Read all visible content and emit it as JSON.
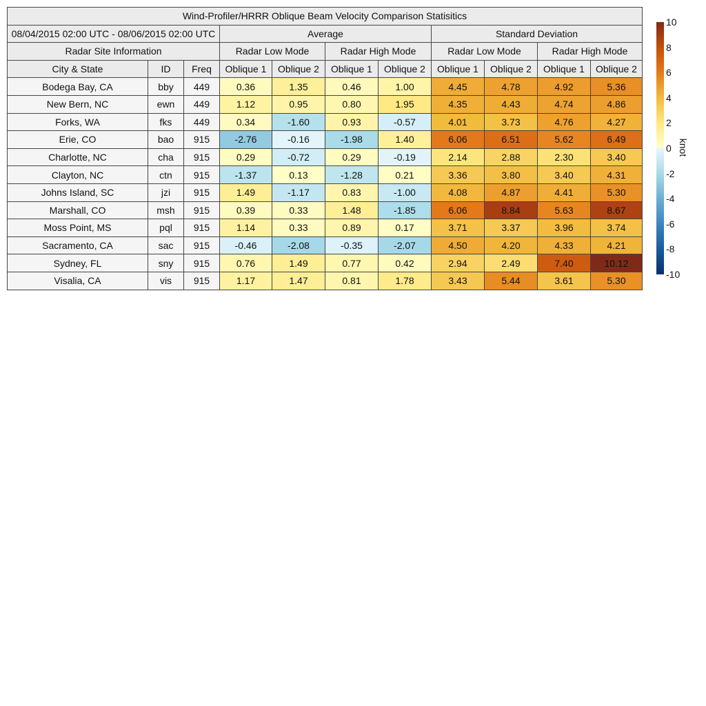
{
  "chart_data": {
    "type": "table",
    "title": "Wind-Profiler/HRRR Oblique Beam Velocity Comparison Statisitics",
    "date_range": "08/04/2015 02:00 UTC - 08/06/2015 02:00 UTC",
    "groups": [
      "Average",
      "Standard Deviation"
    ],
    "site_info_label": "Radar Site Information",
    "modes": [
      "Radar Low Mode",
      "Radar High Mode",
      "Radar Low Mode",
      "Radar High Mode"
    ],
    "columns": [
      "City & State",
      "ID",
      "Freq",
      "Oblique 1",
      "Oblique 2",
      "Oblique 1",
      "Oblique 2",
      "Oblique 1",
      "Oblique 2",
      "Oblique 1",
      "Oblique 2"
    ],
    "rows": [
      {
        "city": "Bodega Bay, CA",
        "id": "bby",
        "freq": "449",
        "values": [
          "0.36",
          "1.35",
          "0.46",
          "1.00",
          "4.45",
          "4.78",
          "4.92",
          "5.36"
        ]
      },
      {
        "city": "New Bern, NC",
        "id": "ewn",
        "freq": "449",
        "values": [
          "1.12",
          "0.95",
          "0.80",
          "1.95",
          "4.35",
          "4.43",
          "4.74",
          "4.86"
        ]
      },
      {
        "city": "Forks, WA",
        "id": "fks",
        "freq": "449",
        "values": [
          "0.34",
          "-1.60",
          "0.93",
          "-0.57",
          "4.01",
          "3.73",
          "4.76",
          "4.27"
        ]
      },
      {
        "city": "Erie, CO",
        "id": "bao",
        "freq": "915",
        "values": [
          "-2.76",
          "-0.16",
          "-1.98",
          "1.40",
          "6.06",
          "6.51",
          "5.62",
          "6.49"
        ]
      },
      {
        "city": "Charlotte, NC",
        "id": "cha",
        "freq": "915",
        "values": [
          "0.29",
          "-0.72",
          "0.29",
          "-0.19",
          "2.14",
          "2.88",
          "2.30",
          "3.40"
        ]
      },
      {
        "city": "Clayton, NC",
        "id": "ctn",
        "freq": "915",
        "values": [
          "-1.37",
          "0.13",
          "-1.28",
          "0.21",
          "3.36",
          "3.80",
          "3.40",
          "4.31"
        ]
      },
      {
        "city": "Johns Island, SC",
        "id": "jzi",
        "freq": "915",
        "values": [
          "1.49",
          "-1.17",
          "0.83",
          "-1.00",
          "4.08",
          "4.87",
          "4.41",
          "5.30"
        ]
      },
      {
        "city": "Marshall, CO",
        "id": "msh",
        "freq": "915",
        "values": [
          "0.39",
          "0.33",
          "1.48",
          "-1.85",
          "6.06",
          "8.84",
          "5.63",
          "8.67"
        ]
      },
      {
        "city": "Moss Point, MS",
        "id": "pql",
        "freq": "915",
        "values": [
          "1.14",
          "0.33",
          "0.89",
          "0.17",
          "3.71",
          "3.37",
          "3.96",
          "3.74"
        ]
      },
      {
        "city": "Sacramento, CA",
        "id": "sac",
        "freq": "915",
        "values": [
          "-0.46",
          "-2.08",
          "-0.35",
          "-2.07",
          "4.50",
          "4.20",
          "4.33",
          "4.21"
        ]
      },
      {
        "city": "Sydney, FL",
        "id": "sny",
        "freq": "915",
        "values": [
          "0.76",
          "1.49",
          "0.77",
          "0.42",
          "2.94",
          "2.49",
          "7.40",
          "10.12"
        ]
      },
      {
        "city": "Visalia, CA",
        "id": "vis",
        "freq": "915",
        "values": [
          "1.17",
          "1.47",
          "0.81",
          "1.78",
          "3.43",
          "5.44",
          "3.61",
          "5.30"
        ]
      }
    ],
    "colorbar": {
      "label": "knot",
      "range": [
        -10,
        10
      ],
      "ticks": [
        "10",
        "8",
        "6",
        "4",
        "2",
        "0",
        "-2",
        "-4",
        "-6",
        "-8",
        "-10"
      ],
      "colors": {
        "-10": "#08306b",
        "-8": "#1a5a9e",
        "-6": "#3e85c0",
        "-4": "#6eaed4",
        "-2": "#a8dbe8",
        "0": "#e8f7fc",
        "2": "#fee883",
        "4": "#f2bb3e",
        "6": "#e47a1a",
        "8": "#c44f0c",
        "10": "#7f2a19"
      }
    }
  }
}
